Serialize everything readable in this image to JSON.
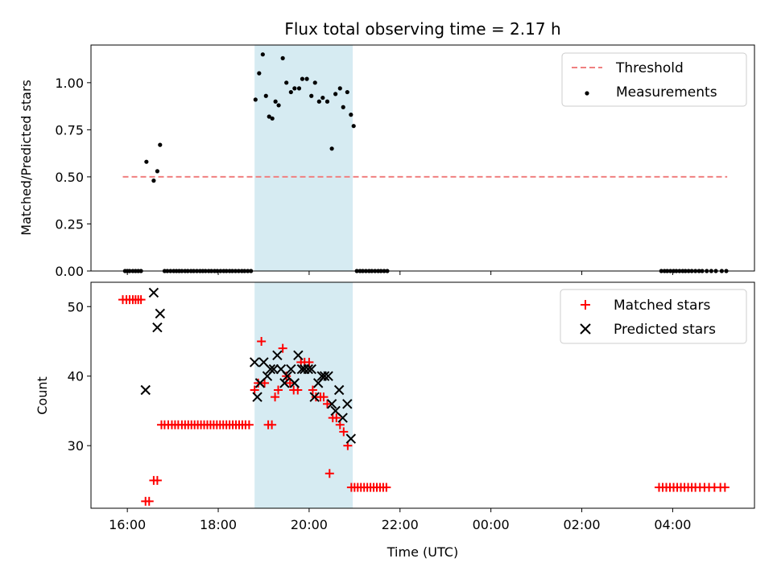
{
  "colors": {
    "threshold": "#f08080",
    "measurement": "#000000",
    "matched": "#ff0000",
    "predicted": "#000000",
    "band": "#add8e6"
  },
  "chart_data": [
    {
      "type": "scatter",
      "panel": "top",
      "title": "Flux total observing time = 2.17 h",
      "xlabel": "",
      "ylabel": "Matched/Predicted stars",
      "x_unit": "hours (UTC, hours past 00:00 of the first day)",
      "xlim": [
        15.2,
        29.8
      ],
      "ylim": [
        0.0,
        1.2
      ],
      "yticks": [
        0.0,
        0.25,
        0.5,
        0.75,
        1.0
      ],
      "ytick_labels": [
        "0.00",
        "0.25",
        "0.50",
        "0.75",
        "1.00"
      ],
      "shaded_interval": [
        18.8,
        20.96
      ],
      "legend": "top-right",
      "legend_entries": [
        "Threshold",
        "Measurements"
      ],
      "threshold": {
        "name": "Threshold",
        "y": 0.5,
        "x": [
          15.9,
          29.2
        ]
      },
      "measurements": {
        "name": "Measurements",
        "points": [
          [
            15.95,
            0.0
          ],
          [
            16.0,
            0.0
          ],
          [
            16.05,
            0.0
          ],
          [
            16.12,
            0.0
          ],
          [
            16.18,
            0.0
          ],
          [
            16.24,
            0.0
          ],
          [
            16.3,
            0.0
          ],
          [
            16.42,
            0.58
          ],
          [
            16.58,
            0.48
          ],
          [
            16.66,
            0.53
          ],
          [
            16.72,
            0.67
          ],
          [
            16.82,
            0.0
          ],
          [
            16.88,
            0.0
          ],
          [
            16.95,
            0.0
          ],
          [
            17.02,
            0.0
          ],
          [
            17.08,
            0.0
          ],
          [
            17.14,
            0.0
          ],
          [
            17.2,
            0.0
          ],
          [
            17.27,
            0.0
          ],
          [
            17.33,
            0.0
          ],
          [
            17.4,
            0.0
          ],
          [
            17.46,
            0.0
          ],
          [
            17.53,
            0.0
          ],
          [
            17.6,
            0.0
          ],
          [
            17.66,
            0.0
          ],
          [
            17.72,
            0.0
          ],
          [
            17.79,
            0.0
          ],
          [
            17.85,
            0.0
          ],
          [
            17.92,
            0.0
          ],
          [
            17.98,
            0.0
          ],
          [
            18.05,
            0.0
          ],
          [
            18.12,
            0.0
          ],
          [
            18.18,
            0.0
          ],
          [
            18.25,
            0.0
          ],
          [
            18.31,
            0.0
          ],
          [
            18.38,
            0.0
          ],
          [
            18.45,
            0.0
          ],
          [
            18.52,
            0.0
          ],
          [
            18.58,
            0.0
          ],
          [
            18.65,
            0.0
          ],
          [
            18.72,
            0.0
          ],
          [
            18.82,
            0.91
          ],
          [
            18.9,
            1.05
          ],
          [
            18.98,
            1.15
          ],
          [
            19.05,
            0.93
          ],
          [
            19.12,
            0.82
          ],
          [
            19.19,
            0.81
          ],
          [
            19.26,
            0.9
          ],
          [
            19.33,
            0.88
          ],
          [
            19.42,
            1.13
          ],
          [
            19.5,
            1.0
          ],
          [
            19.6,
            0.95
          ],
          [
            19.68,
            0.97
          ],
          [
            19.78,
            0.97
          ],
          [
            19.85,
            1.02
          ],
          [
            19.95,
            1.02
          ],
          [
            20.05,
            0.93
          ],
          [
            20.13,
            1.0
          ],
          [
            20.22,
            0.9
          ],
          [
            20.3,
            0.92
          ],
          [
            20.4,
            0.9
          ],
          [
            20.5,
            0.65
          ],
          [
            20.58,
            0.94
          ],
          [
            20.68,
            0.97
          ],
          [
            20.75,
            0.87
          ],
          [
            20.84,
            0.95
          ],
          [
            20.92,
            0.83
          ],
          [
            20.98,
            0.77
          ],
          [
            21.05,
            0.0
          ],
          [
            21.12,
            0.0
          ],
          [
            21.18,
            0.0
          ],
          [
            21.25,
            0.0
          ],
          [
            21.32,
            0.0
          ],
          [
            21.38,
            0.0
          ],
          [
            21.45,
            0.0
          ],
          [
            21.52,
            0.0
          ],
          [
            21.58,
            0.0
          ],
          [
            21.65,
            0.0
          ],
          [
            21.72,
            0.0
          ],
          [
            27.75,
            0.0
          ],
          [
            27.82,
            0.0
          ],
          [
            27.88,
            0.0
          ],
          [
            27.95,
            0.0
          ],
          [
            28.02,
            0.0
          ],
          [
            28.08,
            0.0
          ],
          [
            28.15,
            0.0
          ],
          [
            28.22,
            0.0
          ],
          [
            28.28,
            0.0
          ],
          [
            28.35,
            0.0
          ],
          [
            28.42,
            0.0
          ],
          [
            28.5,
            0.0
          ],
          [
            28.58,
            0.0
          ],
          [
            28.65,
            0.0
          ],
          [
            28.75,
            0.0
          ],
          [
            28.85,
            0.0
          ],
          [
            28.95,
            0.0
          ],
          [
            29.08,
            0.0
          ],
          [
            29.18,
            0.0
          ]
        ]
      }
    },
    {
      "type": "scatter",
      "panel": "bottom",
      "title": "",
      "xlabel": "Time (UTC)",
      "ylabel": "Count",
      "x_unit": "hours (UTC, hours past 00:00 of the first day)",
      "xlim": [
        15.2,
        29.8
      ],
      "ylim": [
        21,
        53.5
      ],
      "yticks": [
        30,
        40,
        50
      ],
      "ytick_labels": [
        "30",
        "40",
        "50"
      ],
      "xticks": [
        16,
        18,
        20,
        22,
        24,
        26,
        28
      ],
      "xtick_labels": [
        "16:00",
        "18:00",
        "20:00",
        "22:00",
        "00:00",
        "02:00",
        "04:00"
      ],
      "shaded_interval": [
        18.8,
        20.96
      ],
      "legend": "top-right",
      "legend_entries": [
        "Matched stars",
        "Predicted stars"
      ],
      "series": [
        {
          "name": "Matched stars",
          "marker": "plus",
          "points": [
            [
              15.9,
              51
            ],
            [
              15.98,
              51
            ],
            [
              16.05,
              51
            ],
            [
              16.12,
              51
            ],
            [
              16.18,
              51
            ],
            [
              16.24,
              51
            ],
            [
              16.3,
              51
            ],
            [
              16.4,
              22
            ],
            [
              16.48,
              22
            ],
            [
              16.58,
              25
            ],
            [
              16.66,
              25
            ],
            [
              16.75,
              33
            ],
            [
              16.82,
              33
            ],
            [
              16.9,
              33
            ],
            [
              16.98,
              33
            ],
            [
              17.05,
              33
            ],
            [
              17.12,
              33
            ],
            [
              17.2,
              33
            ],
            [
              17.27,
              33
            ],
            [
              17.34,
              33
            ],
            [
              17.41,
              33
            ],
            [
              17.48,
              33
            ],
            [
              17.55,
              33
            ],
            [
              17.62,
              33
            ],
            [
              17.69,
              33
            ],
            [
              17.76,
              33
            ],
            [
              17.83,
              33
            ],
            [
              17.9,
              33
            ],
            [
              17.97,
              33
            ],
            [
              18.04,
              33
            ],
            [
              18.11,
              33
            ],
            [
              18.18,
              33
            ],
            [
              18.25,
              33
            ],
            [
              18.32,
              33
            ],
            [
              18.39,
              33
            ],
            [
              18.46,
              33
            ],
            [
              18.53,
              33
            ],
            [
              18.6,
              33
            ],
            [
              18.68,
              33
            ],
            [
              18.8,
              38
            ],
            [
              18.88,
              39
            ],
            [
              18.95,
              45
            ],
            [
              19.02,
              39
            ],
            [
              19.1,
              33
            ],
            [
              19.18,
              33
            ],
            [
              19.25,
              37
            ],
            [
              19.32,
              38
            ],
            [
              19.42,
              44
            ],
            [
              19.5,
              40
            ],
            [
              19.58,
              39
            ],
            [
              19.66,
              38
            ],
            [
              19.75,
              38
            ],
            [
              19.82,
              42
            ],
            [
              19.9,
              42
            ],
            [
              20.0,
              42
            ],
            [
              20.08,
              38
            ],
            [
              20.15,
              37
            ],
            [
              20.25,
              37
            ],
            [
              20.32,
              37
            ],
            [
              20.4,
              36
            ],
            [
              20.45,
              26
            ],
            [
              20.52,
              34
            ],
            [
              20.6,
              34
            ],
            [
              20.68,
              33
            ],
            [
              20.76,
              32
            ],
            [
              20.85,
              30
            ],
            [
              20.93,
              24
            ],
            [
              21.0,
              24
            ],
            [
              21.07,
              24
            ],
            [
              21.14,
              24
            ],
            [
              21.21,
              24
            ],
            [
              21.28,
              24
            ],
            [
              21.35,
              24
            ],
            [
              21.42,
              24
            ],
            [
              21.49,
              24
            ],
            [
              21.56,
              24
            ],
            [
              21.63,
              24
            ],
            [
              21.7,
              24
            ],
            [
              27.7,
              24
            ],
            [
              27.78,
              24
            ],
            [
              27.86,
              24
            ],
            [
              27.94,
              24
            ],
            [
              28.02,
              24
            ],
            [
              28.1,
              24
            ],
            [
              28.18,
              24
            ],
            [
              28.26,
              24
            ],
            [
              28.34,
              24
            ],
            [
              28.42,
              24
            ],
            [
              28.5,
              24
            ],
            [
              28.6,
              24
            ],
            [
              28.7,
              24
            ],
            [
              28.8,
              24
            ],
            [
              28.92,
              24
            ],
            [
              29.05,
              24
            ],
            [
              29.15,
              24
            ]
          ]
        },
        {
          "name": "Predicted stars",
          "marker": "x",
          "points": [
            [
              16.4,
              38
            ],
            [
              16.58,
              52
            ],
            [
              16.66,
              47
            ],
            [
              16.72,
              49
            ],
            [
              18.8,
              42
            ],
            [
              18.86,
              37
            ],
            [
              18.92,
              39
            ],
            [
              19.0,
              42
            ],
            [
              19.08,
              40
            ],
            [
              19.15,
              41
            ],
            [
              19.22,
              41
            ],
            [
              19.3,
              43
            ],
            [
              19.38,
              41
            ],
            [
              19.46,
              39
            ],
            [
              19.52,
              40
            ],
            [
              19.6,
              41
            ],
            [
              19.68,
              39
            ],
            [
              19.76,
              43
            ],
            [
              19.84,
              41
            ],
            [
              19.9,
              41
            ],
            [
              19.98,
              41
            ],
            [
              20.05,
              41
            ],
            [
              20.12,
              37
            ],
            [
              20.2,
              39
            ],
            [
              20.28,
              40
            ],
            [
              20.34,
              40
            ],
            [
              20.42,
              40
            ],
            [
              20.5,
              36
            ],
            [
              20.58,
              35
            ],
            [
              20.66,
              38
            ],
            [
              20.74,
              34
            ],
            [
              20.84,
              36
            ],
            [
              20.92,
              31
            ]
          ]
        }
      ]
    }
  ]
}
